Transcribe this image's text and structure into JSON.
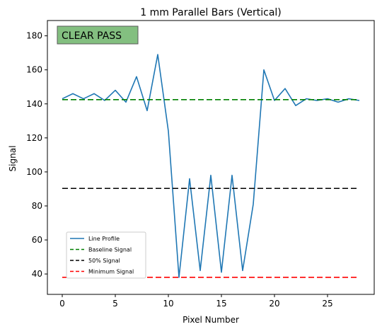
{
  "colors": {
    "line_profile": "#1f77b4",
    "baseline": "#008000",
    "fifty": "#000000",
    "minimum": "#ff0000",
    "badge_fill": "#83bf80",
    "badge_border": "#5a5a5a"
  },
  "chart_data": {
    "type": "line",
    "title": "1 mm Parallel Bars (Vertical)",
    "xlabel": "Pixel Number",
    "ylabel": "Signal",
    "xlim": [
      -1.4,
      29.4
    ],
    "ylim": [
      28,
      189
    ],
    "xticks": [
      0,
      5,
      10,
      15,
      20,
      25
    ],
    "yticks": [
      40,
      60,
      80,
      100,
      120,
      140,
      160,
      180
    ],
    "grid": false,
    "legend_position": "lower-left",
    "annotation": "CLEAR PASS",
    "series": [
      {
        "name": "Line Profile",
        "style": "solid",
        "color_key": "line_profile",
        "x": [
          0,
          1,
          2,
          3,
          4,
          5,
          6,
          7,
          8,
          9,
          10,
          11,
          12,
          13,
          14,
          15,
          16,
          17,
          18,
          19,
          20,
          21,
          22,
          23,
          24,
          25,
          26,
          27,
          28
        ],
        "y": [
          143,
          146,
          143,
          146,
          142,
          148,
          141,
          156,
          136,
          169,
          124,
          38,
          96,
          42,
          98,
          41,
          98,
          42,
          81,
          160,
          142,
          149,
          139,
          143,
          142,
          143,
          141,
          143,
          142
        ]
      },
      {
        "name": "Baseline Signal",
        "style": "dashed",
        "color_key": "baseline",
        "x": [
          0,
          28
        ],
        "y": [
          142.5,
          142.5
        ]
      },
      {
        "name": "50% Signal",
        "style": "dashed",
        "color_key": "fifty",
        "x": [
          0,
          28
        ],
        "y": [
          90.3,
          90.3
        ]
      },
      {
        "name": "Minimum Signal",
        "style": "dashed",
        "color_key": "minimum",
        "x": [
          0,
          28
        ],
        "y": [
          38,
          38
        ]
      }
    ]
  }
}
